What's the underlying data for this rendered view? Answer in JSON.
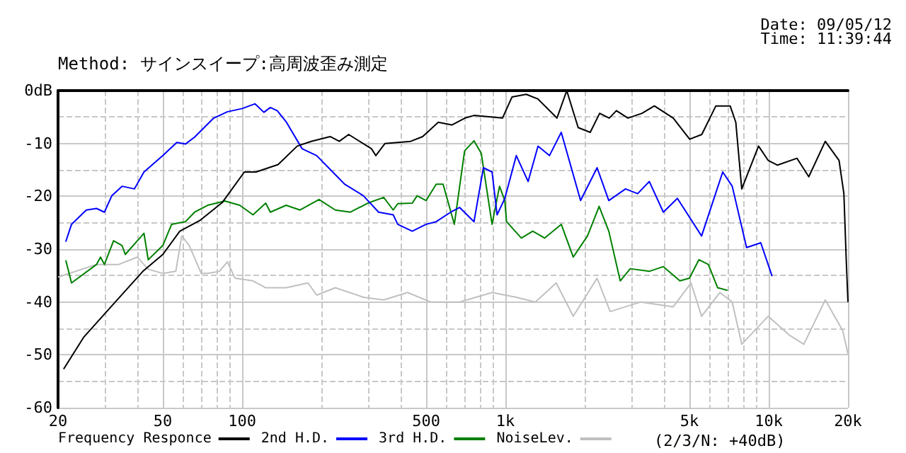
{
  "chart_data": {
    "type": "line",
    "title": "Method: サインスイープ:高周波歪み測定",
    "annotations": [
      "Date: 09/05/12",
      "Time: 11:39:44",
      "(2/3/N: +40dB)"
    ],
    "log": "x",
    "grid": true,
    "legend": "bottom",
    "marker": "none",
    "line_style": "solid",
    "xlim": [
      20,
      20000
    ],
    "xticks": [
      20,
      50,
      100,
      500,
      {
        "value": 1000,
        "label": "1k"
      },
      {
        "value": 5000,
        "label": "5k"
      },
      {
        "value": 10000,
        "label": "10k"
      },
      {
        "value": 20000,
        "label": "20k"
      }
    ],
    "ylim": [
      -60,
      0
    ],
    "yticks": [
      -60,
      -50,
      -40,
      -30,
      -20,
      -10,
      {
        "value": 0,
        "label": "0dB"
      }
    ],
    "series": [
      {
        "name": "Frequency Responce",
        "color": "#000000",
        "x": [
          21,
          25,
          33,
          42,
          50,
          58,
          69,
          84,
          102,
          113,
          137,
          162,
          183,
          216,
          234,
          254,
          310,
          322,
          349,
          437,
          485,
          556,
          626,
          702,
          760,
          975,
          1060,
          1200,
          1330,
          1570,
          1710,
          1890,
          2100,
          2280,
          2480,
          2640,
          2920,
          3300,
          3680,
          4340,
          5010,
          5570,
          6300,
          7140,
          7500,
          7900,
          9150,
          9950,
          10800,
          12800,
          14200,
          16400,
          18500,
          19300,
          19700,
          20000
        ],
        "values": [
          -52.7,
          -46.7,
          -40,
          -34.2,
          -31,
          -26.6,
          -24.6,
          -21.2,
          -15.4,
          -15.4,
          -14,
          -10.5,
          -9.6,
          -8.7,
          -9.6,
          -8.3,
          -11,
          -12.3,
          -10,
          -9.6,
          -8.7,
          -6,
          -6.5,
          -5.2,
          -4.7,
          -5.2,
          -1.2,
          -0.7,
          -1.6,
          -5.2,
          0,
          -7,
          -7.9,
          -4.3,
          -5.2,
          -3.8,
          -5.2,
          -4.3,
          -2.9,
          -5.2,
          -9.2,
          -8.3,
          -2.9,
          -2.9,
          -6,
          -18.6,
          -10.5,
          -13.2,
          -14.1,
          -12.8,
          -16.3,
          -9.6,
          -13.2,
          -19.5,
          -32,
          -40
        ]
      },
      {
        "name": "2nd H.D.",
        "color": "#0000ff",
        "x": [
          21.4,
          22.5,
          25.6,
          28,
          30,
          32,
          35,
          39,
          42.4,
          50,
          56.5,
          61,
          66,
          78,
          88,
          100,
          112,
          121,
          128,
          136,
          147,
          169,
          192,
          226,
          245,
          289,
          330,
          375,
          390,
          443,
          500,
          546,
          620,
          670,
          760,
          825,
          890,
          930,
          995,
          1100,
          1220,
          1330,
          1470,
          1630,
          1930,
          2230,
          2470,
          2860,
          3180,
          3520,
          3980,
          4500,
          5560,
          6690,
          7270,
          8240,
          9330,
          10300
        ],
        "values": [
          -28.6,
          -25.3,
          -22.6,
          -22.3,
          -23,
          -19.9,
          -18.1,
          -18.6,
          -15.4,
          -12.3,
          -9.8,
          -10.1,
          -8.8,
          -5.2,
          -4,
          -3.4,
          -2.5,
          -4.1,
          -3.2,
          -3.8,
          -5.9,
          -11,
          -12.3,
          -15.9,
          -17.7,
          -19.9,
          -23,
          -23.5,
          -25.3,
          -26.6,
          -25.3,
          -24.8,
          -23,
          -22.1,
          -24.8,
          -14.6,
          -15.4,
          -23.5,
          -20.4,
          -12.3,
          -17.2,
          -10.5,
          -12.3,
          -7.9,
          -20.8,
          -14.6,
          -20.8,
          -18.6,
          -19.5,
          -17.2,
          -23,
          -20.4,
          -27.5,
          -15.4,
          -18.1,
          -29.7,
          -28.8,
          -35.1
        ]
      },
      {
        "name": "3rd H.D.",
        "color": "#008000",
        "x": [
          21.4,
          22.5,
          28,
          29,
          30,
          32.5,
          35,
          36,
          42.4,
          44,
          50,
          54,
          61,
          66,
          74,
          86,
          98,
          110,
          123,
          128,
          147,
          166,
          196,
          226,
          258,
          300,
          345,
          375,
          390,
          443,
          462,
          500,
          546,
          580,
          640,
          700,
          760,
          810,
          890,
          950,
          995,
          1010,
          1150,
          1270,
          1410,
          1630,
          1810,
          2050,
          2270,
          2470,
          2730,
          2980,
          3520,
          3980,
          4600,
          5000,
          5430,
          5900,
          6400,
          6970
        ],
        "values": [
          -32.1,
          -36.4,
          -32.9,
          -31.5,
          -32.9,
          -28.4,
          -29.3,
          -31,
          -27,
          -32,
          -29.3,
          -25.3,
          -24.8,
          -23,
          -21.7,
          -20.9,
          -21.7,
          -23.5,
          -21.3,
          -23,
          -21.7,
          -22.6,
          -20.6,
          -22.6,
          -23,
          -21.3,
          -20.2,
          -22.6,
          -21.4,
          -21.3,
          -19.9,
          -20.8,
          -17.7,
          -17.7,
          -25.3,
          -11.4,
          -9.5,
          -11.9,
          -25.3,
          -18.1,
          -20.8,
          -24.8,
          -27.9,
          -26.6,
          -27.9,
          -25.3,
          -31.5,
          -27.5,
          -21.9,
          -26.6,
          -36,
          -33.7,
          -34.2,
          -33.3,
          -36,
          -35.5,
          -32,
          -32.9,
          -37.3,
          -37.8
        ]
      },
      {
        "name": "NoiseLev.",
        "color": "#c0c0c0",
        "x": [
          20,
          28,
          34,
          40,
          44,
          50,
          56,
          59,
          63,
          70,
          74,
          82,
          88,
          94,
          110,
          123,
          147,
          178,
          192,
          226,
          289,
          345,
          425,
          520,
          670,
          890,
          1100,
          1300,
          1560,
          1810,
          2230,
          2500,
          3270,
          4340,
          5070,
          5560,
          6530,
          7270,
          7900,
          9950,
          12000,
          13600,
          16400,
          19100,
          20000
        ],
        "values": [
          -35.3,
          -32.9,
          -32.9,
          -31.5,
          -33.8,
          -34.6,
          -34.2,
          -27.5,
          -29.3,
          -34.6,
          -34.6,
          -34.2,
          -32.4,
          -35.5,
          -36,
          -37.3,
          -37.3,
          -36.4,
          -38.7,
          -37.3,
          -39.1,
          -39.6,
          -38.2,
          -40,
          -40,
          -38.2,
          -39.1,
          -40,
          -36.4,
          -42.7,
          -35.5,
          -41.8,
          -40,
          -40.9,
          -36.4,
          -42.7,
          -38.2,
          -40,
          -48,
          -42.7,
          -46.3,
          -48,
          -39.6,
          -45.4,
          -49.8
        ]
      }
    ]
  }
}
